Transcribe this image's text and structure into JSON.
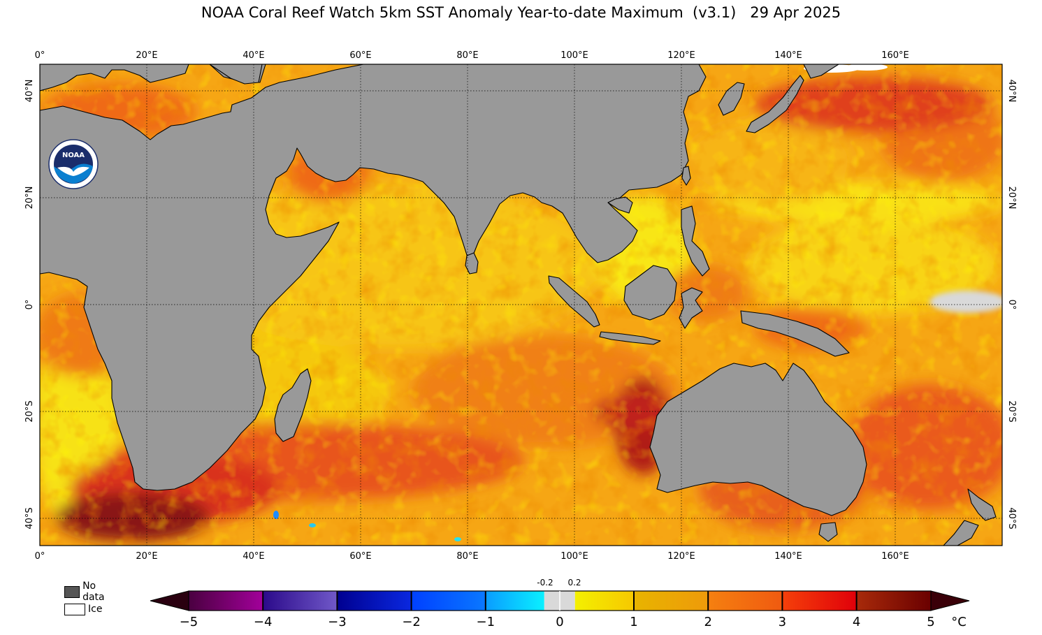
{
  "title": "NOAA Coral Reef Watch 5km SST Anomaly Year-to-date Maximum  (v3.1)   29 Apr 2025",
  "logo": {
    "name": "noaa-logo",
    "text": "NOAA"
  },
  "lon_labels": [
    "0°",
    "20°E",
    "40°E",
    "60°E",
    "80°E",
    "100°E",
    "120°E",
    "140°E",
    "160°E"
  ],
  "lat_labels": [
    "40°N",
    "20°N",
    "0°",
    "20°S",
    "40°S"
  ],
  "legend": {
    "no_data": {
      "label": "No data",
      "color": "#555555"
    },
    "ice": {
      "label": "Ice",
      "color": "#ffffff"
    }
  },
  "colorbar": {
    "ticks": [
      "−5",
      "−4",
      "−3",
      "−2",
      "−1",
      "0",
      "1",
      "2",
      "3",
      "4",
      "5"
    ],
    "small_ticks": [
      "-0.2",
      "0.2"
    ],
    "unit": "°C"
  },
  "colors": {
    "land": "#999999",
    "ocean_base": "#f6a614",
    "neutral": "#d9d9d9"
  }
}
